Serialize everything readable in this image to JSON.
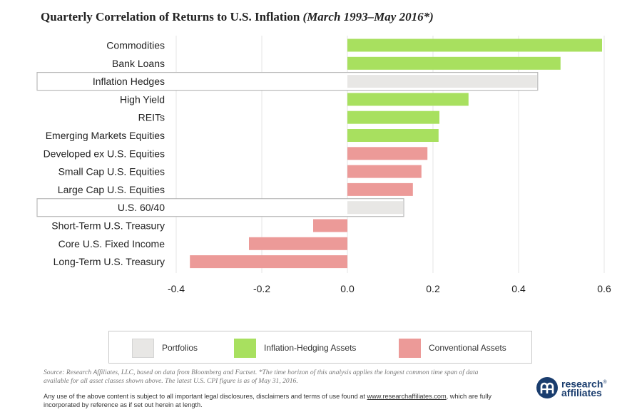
{
  "title": {
    "main": "Quarterly Correlation of Returns to U.S. Inflation ",
    "italic": "(March 1993–May 2016*)"
  },
  "colors": {
    "portfolio": "#e8e7e5",
    "inflation_hedging": "#a8e05f",
    "conventional": "#ec9a98",
    "portfolio_outline": "#b9b9b9",
    "grid": "#e6e6e6"
  },
  "chart_data": {
    "type": "bar",
    "orientation": "horizontal",
    "title": "Quarterly Correlation of Returns to U.S. Inflation (March 1993–May 2016*)",
    "xlabel": "",
    "ylabel": "",
    "xlim": [
      -0.4,
      0.6
    ],
    "xticks": [
      -0.4,
      -0.2,
      0.0,
      0.2,
      0.4,
      0.6
    ],
    "xtick_labels": [
      "-0.4",
      "-0.2",
      "0.0",
      "0.2",
      "0.4",
      "0.6"
    ],
    "grid": "vertical",
    "legend_position": "bottom",
    "categories": [
      "Commodities",
      "Bank Loans",
      "Inflation Hedges",
      "High Yield",
      "REITs",
      "Emerging Markets Equities",
      "Developed ex U.S. Equities",
      "Small Cap U.S. Equities",
      "Large Cap U.S. Equities",
      "U.S. 60/40",
      "Short-Term U.S. Treasury",
      "Core U.S. Fixed Income",
      "Long-Term U.S. Treasury"
    ],
    "values": [
      0.595,
      0.498,
      0.443,
      0.283,
      0.215,
      0.213,
      0.187,
      0.173,
      0.153,
      0.13,
      -0.08,
      -0.23,
      -0.368
    ],
    "groups": [
      "inflation_hedging",
      "inflation_hedging",
      "portfolio",
      "inflation_hedging",
      "inflation_hedging",
      "inflation_hedging",
      "conventional",
      "conventional",
      "conventional",
      "portfolio",
      "conventional",
      "conventional",
      "conventional"
    ]
  },
  "legend": {
    "portfolios": "Portfolios",
    "inflation_hedging": "Inflation-Hedging Assets",
    "conventional": "Conventional Assets"
  },
  "footer": {
    "source": "Source: Research Affiliates, LLC,  based on data from Bloomberg and Factset. *The time horizon of this analysis applies the longest common time span of data available for all asset classes shown above.  The latest U.S. CPI figure is as of May 31, 2016.",
    "disclaimer": "Any use of the above content is subject to all important legal disclosures, disclaimers and terms of use found at ",
    "disclaimer_link": "www.researchaffiliates.com",
    "disclaimer_end": ", which are fully incorporated by reference as if set out herein at length."
  },
  "logo": {
    "line1": "research",
    "trademark": "®",
    "line2": "affiliates"
  }
}
